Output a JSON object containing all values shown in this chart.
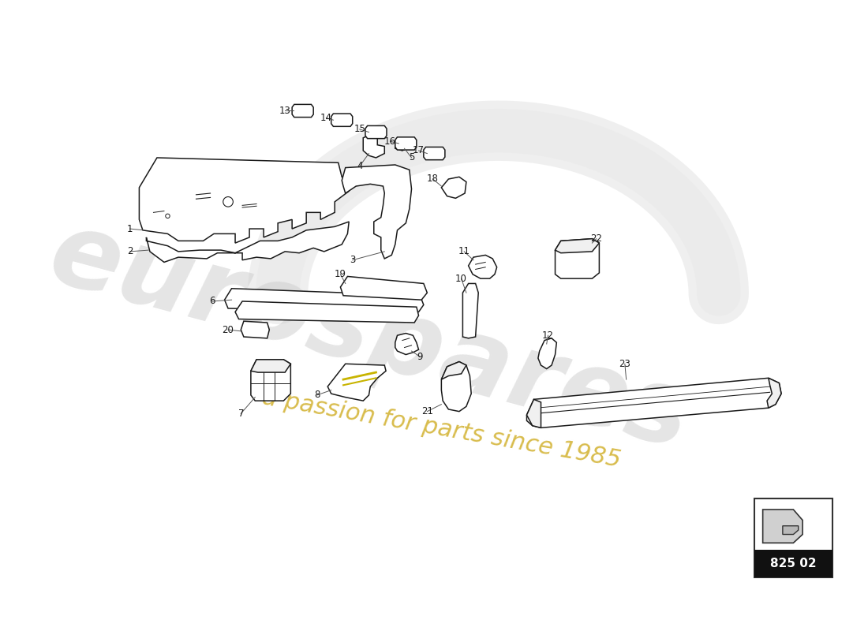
{
  "background_color": "#ffffff",
  "line_color": "#1a1a1a",
  "watermark_text1": "eurospares",
  "watermark_text2": "a passion for parts since 1985",
  "watermark_color1": "#b0b0b0",
  "watermark_color2": "#c8a000",
  "part_number_box": "825 02",
  "lw": 1.1
}
